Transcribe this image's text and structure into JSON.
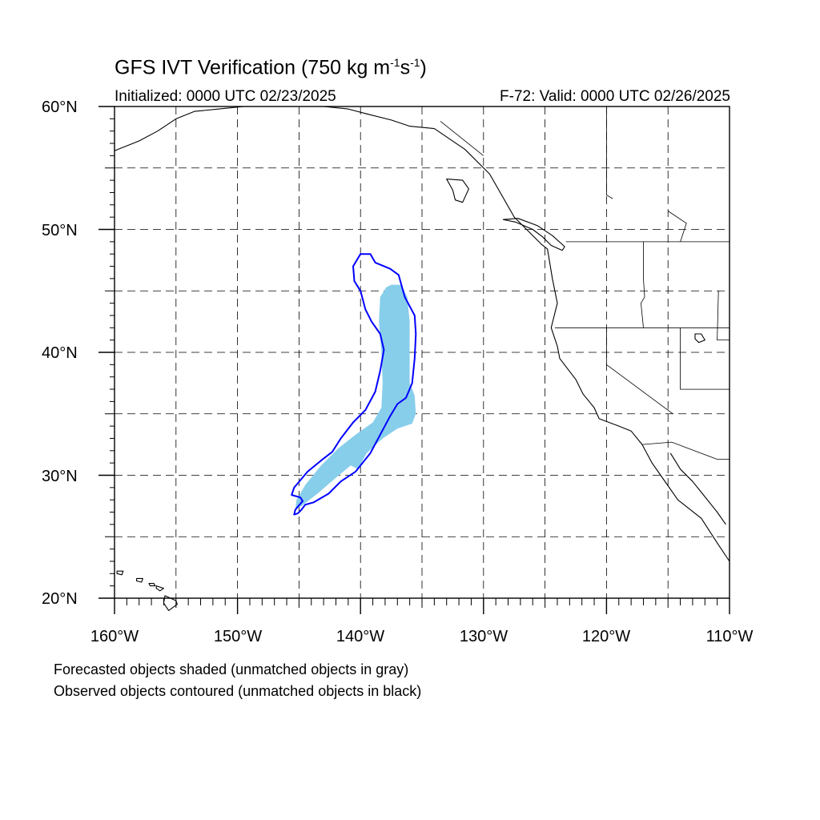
{
  "title": {
    "main": "GFS IVT Verification (750 kg m",
    "exp1": "-1",
    "mid": "s",
    "exp2": "-1",
    "end": ")"
  },
  "subtitle": {
    "initialized": "Initialized: 0000 UTC 02/23/2025",
    "valid": "F-72: Valid: 0000 UTC 02/26/2025"
  },
  "axes": {
    "lat_labels": [
      "60°N",
      "50°N",
      "40°N",
      "30°N",
      "20°N"
    ],
    "lon_labels": [
      "160°W",
      "150°W",
      "140°W",
      "130°W",
      "120°W",
      "110°W"
    ],
    "lat_range": [
      20,
      60
    ],
    "lon_range": [
      -160,
      -110
    ],
    "grid": true
  },
  "legend": {
    "line1": "Forecasted objects shaded (unmatched objects in gray)",
    "line2": "Observed objects contoured (unmatched objects in black)"
  },
  "colors": {
    "forecast_fill": "#87ceeb",
    "observed_contour": "#0000ff",
    "coastline": "#000000",
    "grid": "#000000"
  },
  "objects": {
    "forecast_shaded": {
      "matched": true,
      "points": [
        [
          -137.5,
          45.5
        ],
        [
          -136.7,
          45.5
        ],
        [
          -136.2,
          44.5
        ],
        [
          -136.0,
          42.5
        ],
        [
          -136.0,
          40.0
        ],
        [
          -136.0,
          37.5
        ],
        [
          -135.6,
          36.5
        ],
        [
          -135.5,
          35.0
        ],
        [
          -135.8,
          34.2
        ],
        [
          -137.0,
          33.8
        ],
        [
          -138.2,
          33.0
        ],
        [
          -139.5,
          31.8
        ],
        [
          -140.2,
          30.5
        ],
        [
          -140.8,
          30.8
        ],
        [
          -142.0,
          29.8
        ],
        [
          -143.5,
          28.5
        ],
        [
          -144.8,
          27.5
        ],
        [
          -145.3,
          27.2
        ],
        [
          -145.2,
          28.0
        ],
        [
          -144.5,
          29.2
        ],
        [
          -143.2,
          30.8
        ],
        [
          -141.8,
          32.2
        ],
        [
          -140.4,
          33.3
        ],
        [
          -139.0,
          34.3
        ],
        [
          -138.3,
          35.5
        ],
        [
          -138.2,
          37.5
        ],
        [
          -138.3,
          40.0
        ],
        [
          -138.5,
          42.5
        ],
        [
          -138.4,
          44.5
        ],
        [
          -137.9,
          45.3
        ]
      ]
    },
    "observed_contour": {
      "matched": true,
      "points": [
        [
          -140.0,
          48.0
        ],
        [
          -139.2,
          48.0
        ],
        [
          -138.8,
          47.3
        ],
        [
          -137.6,
          46.8
        ],
        [
          -136.9,
          46.3
        ],
        [
          -136.4,
          44.5
        ],
        [
          -135.6,
          43.0
        ],
        [
          -135.5,
          41.5
        ],
        [
          -135.6,
          39.5
        ],
        [
          -135.8,
          37.5
        ],
        [
          -136.3,
          36.3
        ],
        [
          -137.0,
          35.8
        ],
        [
          -137.6,
          34.8
        ],
        [
          -138.4,
          33.3
        ],
        [
          -139.2,
          31.8
        ],
        [
          -140.4,
          30.3
        ],
        [
          -141.6,
          29.5
        ],
        [
          -142.6,
          28.5
        ],
        [
          -143.8,
          27.8
        ],
        [
          -144.5,
          27.6
        ],
        [
          -144.8,
          27.2
        ],
        [
          -145.1,
          26.9
        ],
        [
          -145.4,
          26.8
        ],
        [
          -145.3,
          27.2
        ],
        [
          -144.7,
          27.9
        ],
        [
          -144.9,
          28.2
        ],
        [
          -145.6,
          28.4
        ],
        [
          -145.4,
          29.0
        ],
        [
          -144.3,
          30.3
        ],
        [
          -143.2,
          31.2
        ],
        [
          -142.3,
          31.9
        ],
        [
          -141.6,
          33.0
        ],
        [
          -140.6,
          34.3
        ],
        [
          -139.6,
          35.3
        ],
        [
          -138.8,
          36.8
        ],
        [
          -138.4,
          38.5
        ],
        [
          -138.1,
          40.2
        ],
        [
          -138.4,
          41.5
        ],
        [
          -139.1,
          42.5
        ],
        [
          -139.6,
          43.5
        ],
        [
          -140.0,
          45.0
        ],
        [
          -140.5,
          45.8
        ],
        [
          -140.6,
          47.0
        ]
      ]
    }
  },
  "geography": {
    "west_coast": [
      [
        -134.0,
        58.2
      ],
      [
        -131.5,
        56.5
      ],
      [
        -129.5,
        54.5
      ],
      [
        -127.5,
        51.0
      ],
      [
        -125.3,
        48.8
      ],
      [
        -124.8,
        48.4
      ],
      [
        -124.4,
        46.0
      ],
      [
        -124.0,
        44.0
      ],
      [
        -124.5,
        42.0
      ],
      [
        -124.0,
        40.5
      ],
      [
        -123.8,
        39.5
      ],
      [
        -122.5,
        37.8
      ],
      [
        -121.9,
        36.6
      ],
      [
        -121.0,
        35.5
      ],
      [
        -120.6,
        34.6
      ],
      [
        -119.0,
        34.0
      ],
      [
        -118.0,
        33.6
      ],
      [
        -117.1,
        32.5
      ],
      [
        -116.3,
        31.0
      ],
      [
        -115.6,
        30.0
      ],
      [
        -114.2,
        28.0
      ],
      [
        -112.3,
        26.5
      ],
      [
        -111.0,
        24.5
      ],
      [
        -110.0,
        23.0
      ]
    ],
    "gulf_of_california_coast": [
      [
        -114.8,
        31.8
      ],
      [
        -114.0,
        30.5
      ],
      [
        -113.0,
        29.5
      ],
      [
        -112.2,
        28.5
      ],
      [
        -111.0,
        27.0
      ],
      [
        -110.3,
        26.0
      ]
    ],
    "alaska_coast": [
      [
        -160.0,
        56.4
      ],
      [
        -158.0,
        57.2
      ],
      [
        -156.5,
        58.0
      ],
      [
        -155.0,
        59.0
      ],
      [
        -153.5,
        59.6
      ],
      [
        -151.5,
        59.8
      ],
      [
        -149.5,
        60.0
      ],
      [
        -146.0,
        60.0
      ],
      [
        -143.0,
        60.0
      ],
      [
        -141.0,
        59.8
      ],
      [
        -139.5,
        59.4
      ],
      [
        -137.5,
        58.9
      ],
      [
        -136.0,
        58.4
      ],
      [
        -134.0,
        58.2
      ]
    ],
    "vancouver_island": [
      [
        -128.4,
        50.8
      ],
      [
        -127.4,
        50.6
      ],
      [
        -126.0,
        50.0
      ],
      [
        -125.2,
        49.4
      ],
      [
        -124.5,
        48.7
      ],
      [
        -123.6,
        48.3
      ],
      [
        -123.4,
        48.6
      ],
      [
        -124.4,
        49.5
      ],
      [
        -125.6,
        50.3
      ],
      [
        -127.2,
        50.9
      ],
      [
        -128.4,
        50.8
      ]
    ],
    "haida_gwaii": [
      [
        -133.0,
        54.1
      ],
      [
        -131.7,
        54.0
      ],
      [
        -131.2,
        53.3
      ],
      [
        -131.7,
        52.2
      ],
      [
        -132.3,
        52.4
      ],
      [
        -132.5,
        53.2
      ],
      [
        -133.0,
        54.1
      ]
    ],
    "hawaii_islands": [
      [
        [
          -159.8,
          22.2
        ],
        [
          -159.3,
          22.2
        ],
        [
          -159.4,
          21.9
        ],
        [
          -159.8,
          22.0
        ],
        [
          -159.8,
          22.2
        ]
      ],
      [
        [
          -158.2,
          21.6
        ],
        [
          -157.7,
          21.6
        ],
        [
          -157.8,
          21.3
        ],
        [
          -158.2,
          21.4
        ],
        [
          -158.2,
          21.6
        ]
      ],
      [
        [
          -157.2,
          21.2
        ],
        [
          -156.8,
          21.2
        ],
        [
          -156.7,
          21.0
        ],
        [
          -157.1,
          21.0
        ],
        [
          -157.2,
          21.2
        ]
      ],
      [
        [
          -156.6,
          21.0
        ],
        [
          -156.0,
          20.8
        ],
        [
          -156.3,
          20.6
        ],
        [
          -156.6,
          20.8
        ],
        [
          -156.6,
          21.0
        ]
      ],
      [
        [
          -155.9,
          20.2
        ],
        [
          -155.0,
          19.8
        ],
        [
          -154.9,
          19.5
        ],
        [
          -155.6,
          19.0
        ],
        [
          -156.0,
          19.6
        ],
        [
          -155.9,
          20.2
        ]
      ]
    ],
    "borders": [
      [
        [
          -123.3,
          49.0
        ],
        [
          -110.0,
          49.0
        ]
      ],
      [
        [
          -124.2,
          42.0
        ],
        [
          -110.0,
          42.0
        ]
      ],
      [
        [
          -120.0,
          42.0
        ],
        [
          -120.0,
          39.0
        ],
        [
          -114.6,
          35.0
        ]
      ],
      [
        [
          -117.0,
          49.0
        ],
        [
          -117.0,
          46.0
        ],
        [
          -116.9,
          44.5
        ],
        [
          -117.2,
          44.0
        ],
        [
          -117.0,
          42.0
        ]
      ],
      [
        [
          -114.0,
          42.0
        ],
        [
          -114.0,
          37.0
        ],
        [
          -110.0,
          37.0
        ]
      ],
      [
        [
          -117.1,
          32.5
        ],
        [
          -114.7,
          32.7
        ],
        [
          -111.0,
          31.3
        ],
        [
          -110.0,
          31.3
        ]
      ],
      [
        [
          -110.9,
          45.0
        ],
        [
          -111.0,
          41.0
        ],
        [
          -110.0,
          41.0
        ]
      ],
      [
        [
          -133.5,
          58.8
        ],
        [
          -130.0,
          56.0
        ]
      ],
      [
        [
          -120.0,
          60.0
        ],
        [
          -120.0,
          52.8
        ],
        [
          -119.5,
          52.5
        ]
      ],
      [
        [
          -114.0,
          49.0
        ],
        [
          -113.5,
          50.5
        ],
        [
          -115.0,
          51.5
        ]
      ]
    ],
    "lakes": [
      [
        [
          -112.8,
          41.5
        ],
        [
          -112.3,
          41.5
        ],
        [
          -112.0,
          41.0
        ],
        [
          -112.5,
          40.8
        ],
        [
          -112.8,
          41.1
        ],
        [
          -112.8,
          41.5
        ]
      ]
    ]
  }
}
